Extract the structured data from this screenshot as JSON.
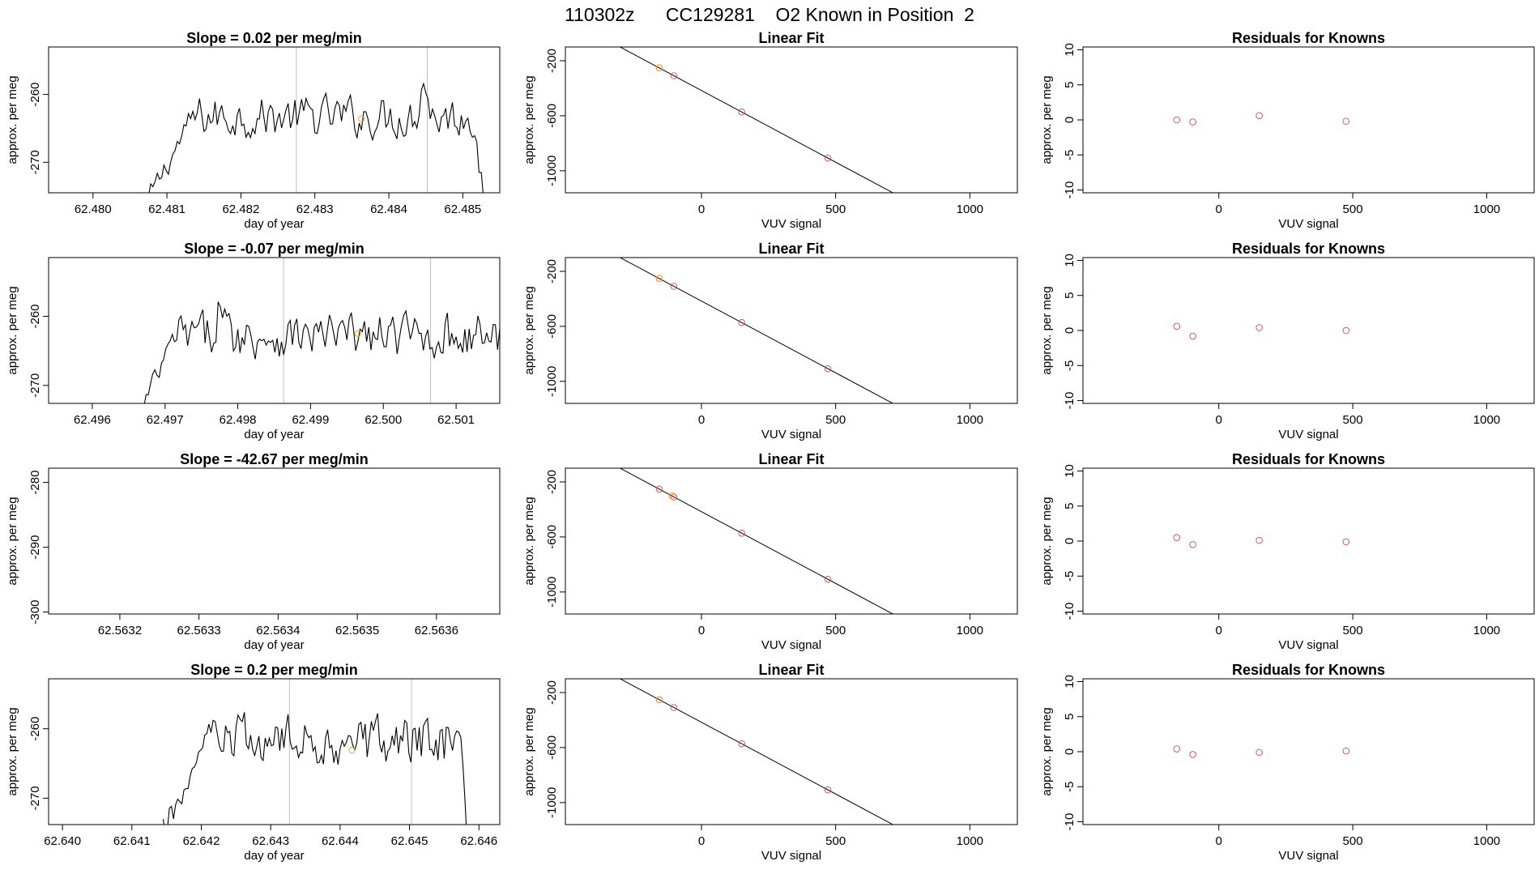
{
  "page_title": "110302z      CC129281    O2 Known in Position  2",
  "colors": {
    "line": "#000000",
    "residual_point": "#cd5c5c",
    "current_point": "#f0a030",
    "guide_line": "#bebebe",
    "frame": "#000000"
  },
  "chart_data": [
    {
      "name": "trace-row-1",
      "type": "line",
      "title": "Slope =  0.02  per meg/min",
      "xlabel": "day of year",
      "ylabel": "approx. per meg",
      "xlim": [
        62.4794,
        62.4855
      ],
      "ylim": [
        -274.5,
        -253
      ],
      "xticks": [
        62.48,
        62.481,
        62.482,
        62.483,
        62.484,
        62.485
      ],
      "xtick_labels": [
        "62.480",
        "62.481",
        "62.482",
        "62.483",
        "62.484",
        "62.485"
      ],
      "yticks": [
        -260,
        -270
      ],
      "ytick_labels": [
        "-260",
        "-270"
      ],
      "vlines": [
        62.48275,
        62.48452
      ],
      "trace_start": 62.48075,
      "trace_end": 62.48528,
      "trace_step": 3e-05,
      "trace_base": -263.3,
      "trace_amp": 1.6,
      "ramp_end": 62.48135,
      "fall_start": 62.48518,
      "bumps": [
        {
          "x": 62.48447,
          "h": 5.5,
          "w": 7e-05
        }
      ],
      "marker": {
        "x": 62.48363,
        "y": -263.6
      }
    },
    {
      "name": "fit-row-1",
      "type": "scatter-fit",
      "title": "Linear Fit",
      "xlabel": "VUV signal",
      "ylabel": "approx. per meg",
      "xlim": [
        -507,
        1177
      ],
      "ylim": [
        -1160,
        -100
      ],
      "xticks": [
        0,
        500,
        1000
      ],
      "xtick_labels": [
        "0",
        "500",
        "1000"
      ],
      "yticks": [
        -200,
        -600,
        -1000
      ],
      "ytick_labels": [
        "-200",
        "-600",
        "-1000"
      ],
      "fit": {
        "slope": -1.043,
        "intercept": -416.2,
        "x_from": -440,
        "x_to": 1090
      },
      "points": [
        [
          -157,
          -252
        ],
        [
          -103,
          -309
        ],
        [
          150,
          -572
        ],
        [
          471,
          -908
        ]
      ],
      "current": [
        [
          -157,
          -252
        ]
      ]
    },
    {
      "name": "resid-row-1",
      "type": "scatter",
      "title": "Residuals for Knowns",
      "xlabel": "VUV signal",
      "ylabel": "approx. per meg",
      "xlim": [
        -507,
        1177
      ],
      "ylim": [
        -10.4,
        10.4
      ],
      "xticks": [
        0,
        500,
        1000
      ],
      "xtick_labels": [
        "0",
        "500",
        "1000"
      ],
      "yticks": [
        10,
        5,
        0,
        -5,
        -10
      ],
      "ytick_labels": [
        "10",
        "5",
        "0",
        "-5",
        "-10"
      ],
      "points": [
        [
          -157,
          0.0
        ],
        [
          -97,
          -0.3
        ],
        [
          151,
          0.6
        ],
        [
          475,
          -0.2
        ]
      ]
    },
    {
      "name": "trace-row-2",
      "type": "line",
      "title": "Slope =  -0.07  per meg/min",
      "xlabel": "day of year",
      "ylabel": "approx. per meg",
      "xlim": [
        62.4954,
        62.5016
      ],
      "ylim": [
        -272.6,
        -251.5
      ],
      "xticks": [
        62.496,
        62.497,
        62.498,
        62.499,
        62.5,
        62.501
      ],
      "xtick_labels": [
        "62.496",
        "62.497",
        "62.498",
        "62.499",
        "62.500",
        "62.501"
      ],
      "yticks": [
        -260,
        -270
      ],
      "ytick_labels": [
        "-260",
        "-270"
      ],
      "vlines": [
        62.49863,
        62.50065
      ],
      "trace_start": 62.49668,
      "trace_end": 62.50162,
      "trace_step": 3e-05,
      "trace_base": -262.8,
      "trace_amp": 1.7,
      "ramp_end": 62.49715,
      "fall_start": 62.50175,
      "bumps": [
        {
          "x": 62.49775,
          "h": 4.2,
          "w": 8e-05
        }
      ],
      "marker": {
        "x": 62.49965,
        "y": -262.5
      }
    },
    {
      "name": "fit-row-2",
      "type": "scatter-fit",
      "title": "Linear Fit",
      "xlabel": "VUV signal",
      "ylabel": "approx. per meg",
      "xlim": [
        -507,
        1177
      ],
      "ylim": [
        -1160,
        -100
      ],
      "xticks": [
        0,
        500,
        1000
      ],
      "xtick_labels": [
        "0",
        "500",
        "1000"
      ],
      "yticks": [
        -200,
        -600,
        -1000
      ],
      "ytick_labels": [
        "-200",
        "-600",
        "-1000"
      ],
      "fit": {
        "slope": -1.043,
        "intercept": -416.2,
        "x_from": -440,
        "x_to": 1090
      },
      "points": [
        [
          -157,
          -252
        ],
        [
          -103,
          -309
        ],
        [
          150,
          -572
        ],
        [
          471,
          -908
        ]
      ],
      "current": [
        [
          -157,
          -252
        ]
      ]
    },
    {
      "name": "resid-row-2",
      "type": "scatter",
      "title": "Residuals for Knowns",
      "xlabel": "VUV signal",
      "ylabel": "approx. per meg",
      "xlim": [
        -507,
        1177
      ],
      "ylim": [
        -10.4,
        10.4
      ],
      "xticks": [
        0,
        500,
        1000
      ],
      "xtick_labels": [
        "0",
        "500",
        "1000"
      ],
      "yticks": [
        10,
        5,
        0,
        -5,
        -10
      ],
      "ytick_labels": [
        "10",
        "5",
        "0",
        "-5",
        "-10"
      ],
      "points": [
        [
          -157,
          0.6
        ],
        [
          -97,
          -0.8
        ],
        [
          151,
          0.4
        ],
        [
          475,
          0.0
        ]
      ]
    },
    {
      "name": "trace-row-3",
      "type": "line",
      "title": "Slope =  -42.67  per meg/min",
      "xlabel": "day of year",
      "ylabel": "approx. per meg",
      "xlim": [
        62.56311,
        62.56368
      ],
      "ylim": [
        -300.3,
        -277.8
      ],
      "xticks": [
        62.5632,
        62.5633,
        62.5634,
        62.5635,
        62.5636
      ],
      "xtick_labels": [
        "62.5632",
        "62.5633",
        "62.5634",
        "62.5635",
        "62.5636"
      ],
      "yticks": [
        -280,
        -290,
        -300
      ],
      "ytick_labels": [
        "-280",
        "-290",
        "-300"
      ],
      "vlines": [],
      "trace_start": null,
      "trace_end": null,
      "marker": null
    },
    {
      "name": "fit-row-3",
      "type": "scatter-fit",
      "title": "Linear Fit",
      "xlabel": "VUV signal",
      "ylabel": "approx. per meg",
      "xlim": [
        -507,
        1177
      ],
      "ylim": [
        -1160,
        -100
      ],
      "xticks": [
        0,
        500,
        1000
      ],
      "xtick_labels": [
        "0",
        "500",
        "1000"
      ],
      "yticks": [
        -200,
        -600,
        -1000
      ],
      "ytick_labels": [
        "-200",
        "-600",
        "-1000"
      ],
      "fit": {
        "slope": -1.043,
        "intercept": -416.2,
        "x_from": -440,
        "x_to": 1090
      },
      "points": [
        [
          -157,
          -252
        ],
        [
          -103,
          -309
        ],
        [
          150,
          -572
        ],
        [
          471,
          -908
        ]
      ],
      "current": [
        [
          -110,
          -301
        ]
      ]
    },
    {
      "name": "resid-row-3",
      "type": "scatter",
      "title": "Residuals for Knowns",
      "xlabel": "VUV signal",
      "ylabel": "approx. per meg",
      "xlim": [
        -507,
        1177
      ],
      "ylim": [
        -10.4,
        10.4
      ],
      "xticks": [
        0,
        500,
        1000
      ],
      "xtick_labels": [
        "0",
        "500",
        "1000"
      ],
      "yticks": [
        10,
        5,
        0,
        -5,
        -10
      ],
      "ytick_labels": [
        "10",
        "5",
        "0",
        "-5",
        "-10"
      ],
      "points": [
        [
          -157,
          0.5
        ],
        [
          -97,
          -0.5
        ],
        [
          151,
          0.1
        ],
        [
          475,
          -0.1
        ]
      ]
    },
    {
      "name": "trace-row-4",
      "type": "line",
      "title": "Slope =  0.2  per meg/min",
      "xlabel": "day of year",
      "ylabel": "approx. per meg",
      "xlim": [
        62.6398,
        62.6463
      ],
      "ylim": [
        -273.8,
        -252.8
      ],
      "xticks": [
        62.64,
        62.641,
        62.642,
        62.643,
        62.644,
        62.645,
        62.646
      ],
      "xtick_labels": [
        "62.640",
        "62.641",
        "62.642",
        "62.643",
        "62.644",
        "62.645",
        "62.646"
      ],
      "yticks": [
        -260,
        -270
      ],
      "ytick_labels": [
        "-260",
        "-270"
      ],
      "vlines": [
        62.64327,
        62.64503
      ],
      "trace_start": 62.64145,
      "trace_end": 62.64585,
      "trace_step": 3e-05,
      "trace_base": -261.8,
      "trace_amp": 1.9,
      "ramp_end": 62.6421,
      "fall_start": 62.64572,
      "bumps": [],
      "marker": {
        "x": 62.64417,
        "y": -263.1
      }
    },
    {
      "name": "fit-row-4",
      "type": "scatter-fit",
      "title": "Linear Fit",
      "xlabel": "VUV signal",
      "ylabel": "approx. per meg",
      "xlim": [
        -507,
        1177
      ],
      "ylim": [
        -1160,
        -100
      ],
      "xticks": [
        0,
        500,
        1000
      ],
      "xtick_labels": [
        "0",
        "500",
        "1000"
      ],
      "yticks": [
        -200,
        -600,
        -1000
      ],
      "ytick_labels": [
        "-200",
        "-600",
        "-1000"
      ],
      "fit": {
        "slope": -1.043,
        "intercept": -416.2,
        "x_from": -440,
        "x_to": 1090
      },
      "points": [
        [
          -157,
          -252
        ],
        [
          -103,
          -309
        ],
        [
          150,
          -572
        ],
        [
          471,
          -908
        ]
      ],
      "current": [
        [
          -157,
          -252
        ]
      ]
    },
    {
      "name": "resid-row-4",
      "type": "scatter",
      "title": "Residuals for Knowns",
      "xlabel": "VUV signal",
      "ylabel": "approx. per meg",
      "xlim": [
        -507,
        1177
      ],
      "ylim": [
        -10.4,
        10.4
      ],
      "xticks": [
        0,
        500,
        1000
      ],
      "xtick_labels": [
        "0",
        "500",
        "1000"
      ],
      "yticks": [
        10,
        5,
        0,
        -5,
        -10
      ],
      "ytick_labels": [
        "10",
        "5",
        "0",
        "-5",
        "-10"
      ],
      "points": [
        [
          -157,
          0.4
        ],
        [
          -97,
          -0.4
        ],
        [
          151,
          -0.1
        ],
        [
          475,
          0.1
        ]
      ]
    }
  ]
}
